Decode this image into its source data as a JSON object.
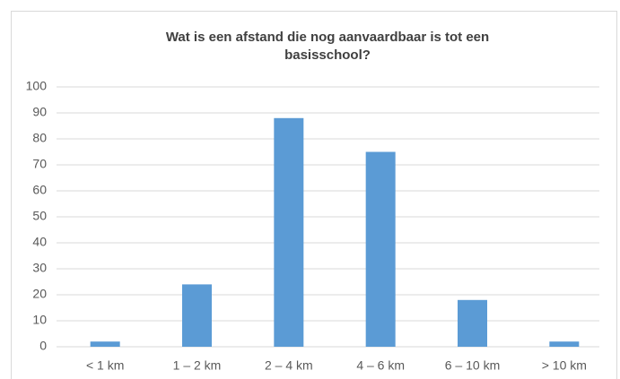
{
  "chart_data": {
    "type": "bar",
    "title": "Wat is een afstand die nog aanvaardbaar is tot een basisschool?",
    "categories": [
      "< 1 km",
      "1 – 2 km",
      "2 – 4 km",
      "4 – 6 km",
      "6 – 10 km",
      "> 10 km"
    ],
    "values": [
      2,
      24,
      88,
      75,
      18,
      2
    ],
    "color": "#5b9bd5",
    "ylim": [
      0,
      100
    ],
    "yticks": [
      0,
      10,
      20,
      30,
      40,
      50,
      60,
      70,
      80,
      90,
      100
    ],
    "grid": true
  }
}
